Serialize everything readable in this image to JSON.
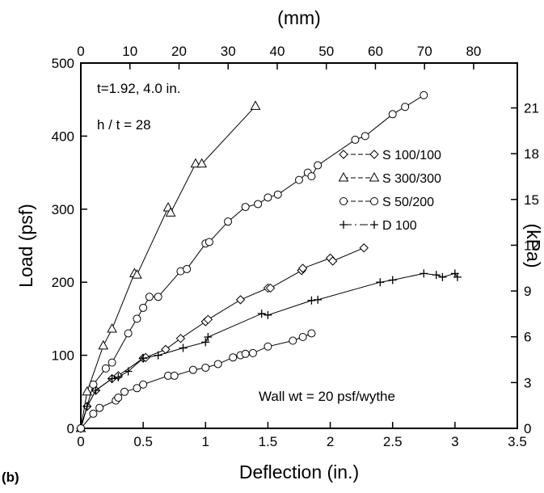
{
  "panel_label": "(b)",
  "chart_data": {
    "type": "line",
    "title": "",
    "xlabel": "Deflection (in.)",
    "ylabel": "Load (psf)",
    "x2label": "(mm)",
    "y2label": "(kPa)",
    "xlim": [
      0,
      3.5
    ],
    "ylim": [
      0,
      500
    ],
    "x2lim": [
      0,
      88.9
    ],
    "y2lim": [
      0,
      23.94
    ],
    "x_ticks": [
      "0",
      "0.5",
      "1",
      "1.5",
      "2",
      "2.5",
      "3",
      "3.5"
    ],
    "y_ticks": [
      "0",
      "100",
      "200",
      "300",
      "400",
      "500"
    ],
    "x2_ticks": [
      "0",
      "10",
      "20",
      "30",
      "40",
      "50",
      "60",
      "70",
      "80"
    ],
    "y2_ticks": [
      "0",
      "3",
      "6",
      "9",
      "12",
      "15",
      "18",
      "21"
    ],
    "grid": false,
    "legend_position": "right",
    "annotations": [
      "t=1.92, 4.0 in.",
      "h / t = 28",
      "Wall wt = 20 psf/wythe"
    ],
    "series": [
      {
        "name": "S 100/100",
        "marker": "diamond",
        "points": [
          [
            0,
            0
          ],
          [
            0.05,
            30
          ],
          [
            0.12,
            52
          ],
          [
            0.25,
            68
          ],
          [
            0.3,
            72
          ],
          [
            0.5,
            96
          ],
          [
            0.52,
            97
          ],
          [
            0.68,
            108
          ],
          [
            0.8,
            123
          ],
          [
            1.0,
            146
          ],
          [
            1.02,
            149
          ],
          [
            1.28,
            176
          ],
          [
            1.5,
            192
          ],
          [
            1.52,
            192
          ],
          [
            1.77,
            216
          ],
          [
            1.78,
            219
          ],
          [
            2.0,
            233
          ],
          [
            2.02,
            229
          ],
          [
            2.27,
            247
          ]
        ]
      },
      {
        "name": "S 300/300",
        "marker": "triangle",
        "points": [
          [
            0,
            0
          ],
          [
            0.05,
            50
          ],
          [
            0.18,
            113
          ],
          [
            0.25,
            136
          ],
          [
            0.43,
            212
          ],
          [
            0.45,
            210
          ],
          [
            0.7,
            302
          ],
          [
            0.72,
            295
          ],
          [
            0.92,
            362
          ],
          [
            0.97,
            362
          ],
          [
            1.4,
            441
          ]
        ]
      },
      {
        "name": "S 50/200",
        "marker": "circle",
        "points": [
          [
            0,
            0
          ],
          [
            0.1,
            60
          ],
          [
            0.2,
            82
          ],
          [
            0.25,
            90
          ],
          [
            0.38,
            130
          ],
          [
            0.45,
            150
          ],
          [
            0.5,
            165
          ],
          [
            0.55,
            180
          ],
          [
            0.62,
            180
          ],
          [
            0.8,
            215
          ],
          [
            0.85,
            218
          ],
          [
            1.0,
            253
          ],
          [
            1.03,
            255
          ],
          [
            1.18,
            283
          ],
          [
            1.32,
            303
          ],
          [
            1.42,
            307
          ],
          [
            1.5,
            316
          ],
          [
            1.58,
            320
          ],
          [
            1.75,
            340
          ],
          [
            1.82,
            350
          ],
          [
            1.85,
            345
          ],
          [
            1.9,
            360
          ],
          [
            2.2,
            395
          ],
          [
            2.28,
            400
          ],
          [
            2.5,
            430
          ],
          [
            2.6,
            440
          ],
          [
            2.75,
            456
          ]
        ]
      },
      {
        "name": "D 100",
        "marker": "plus",
        "points": [
          [
            0,
            0
          ],
          [
            0.05,
            30
          ],
          [
            0.12,
            52
          ],
          [
            0.25,
            68
          ],
          [
            0.3,
            70
          ],
          [
            0.38,
            78
          ],
          [
            0.5,
            96
          ],
          [
            0.62,
            100
          ],
          [
            0.82,
            110
          ],
          [
            1.0,
            118
          ],
          [
            1.02,
            125
          ],
          [
            1.45,
            157
          ],
          [
            1.5,
            155
          ],
          [
            1.85,
            175
          ],
          [
            1.9,
            176
          ],
          [
            2.4,
            200
          ],
          [
            2.5,
            203
          ],
          [
            2.75,
            212
          ],
          [
            2.85,
            210
          ],
          [
            2.9,
            207
          ],
          [
            3.0,
            212
          ],
          [
            3.02,
            207
          ]
        ]
      },
      {
        "name": "",
        "marker": "circle",
        "points": [
          [
            0,
            0
          ],
          [
            0.1,
            20
          ],
          [
            0.15,
            28
          ],
          [
            0.28,
            38
          ],
          [
            0.3,
            42
          ],
          [
            0.35,
            50
          ],
          [
            0.45,
            55
          ],
          [
            0.5,
            60
          ],
          [
            0.7,
            72
          ],
          [
            0.75,
            72
          ],
          [
            0.9,
            80
          ],
          [
            1.0,
            83
          ],
          [
            1.1,
            88
          ],
          [
            1.22,
            97
          ],
          [
            1.28,
            100
          ],
          [
            1.32,
            102
          ],
          [
            1.38,
            103
          ],
          [
            1.5,
            112
          ],
          [
            1.7,
            120
          ],
          [
            1.78,
            125
          ],
          [
            1.85,
            130
          ]
        ]
      }
    ]
  }
}
